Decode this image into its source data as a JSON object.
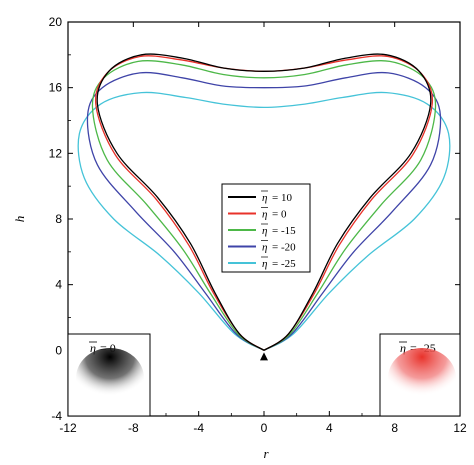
{
  "chart_data": {
    "type": "line",
    "title": "",
    "xlabel": "r",
    "ylabel": "h",
    "xlim": [
      -12,
      12
    ],
    "ylim": [
      -4,
      20
    ],
    "x_ticks": [
      -12,
      -8,
      -4,
      0,
      4,
      8,
      12
    ],
    "y_ticks": [
      -4,
      0,
      4,
      8,
      12,
      16,
      20
    ],
    "grid": false,
    "legend_position": "center",
    "series": [
      {
        "name": "10",
        "color": "#000000",
        "shape": {
          "max_r": 10.2,
          "top_h": 17.0,
          "lobe_h": 18.0,
          "lobe_r": 6.8
        },
        "points": [
          [
            0,
            0
          ],
          [
            1.5,
            1.0
          ],
          [
            3.0,
            3.5
          ],
          [
            4.5,
            6.5
          ],
          [
            6.5,
            9.3
          ],
          [
            9.0,
            12.0
          ],
          [
            10.2,
            15.0
          ],
          [
            9.5,
            17.0
          ],
          [
            7.5,
            18.0
          ],
          [
            5.0,
            17.8
          ],
          [
            2.5,
            17.2
          ],
          [
            0,
            17.0
          ],
          [
            -2.5,
            17.2
          ],
          [
            -5.0,
            17.8
          ],
          [
            -7.5,
            18.0
          ],
          [
            -9.5,
            17.0
          ],
          [
            -10.2,
            15.0
          ],
          [
            -9.0,
            12.0
          ],
          [
            -6.5,
            9.3
          ],
          [
            -4.5,
            6.5
          ],
          [
            -3.0,
            3.5
          ],
          [
            -1.5,
            1.0
          ],
          [
            0,
            0
          ]
        ]
      },
      {
        "name": "0",
        "color": "#e8322a",
        "shape": {
          "max_r": 10.3,
          "top_h": 17.0,
          "lobe_h": 17.9,
          "lobe_r": 6.9
        },
        "points": [
          [
            0,
            0
          ],
          [
            1.5,
            1.0
          ],
          [
            3.1,
            3.5
          ],
          [
            4.6,
            6.4
          ],
          [
            6.6,
            9.2
          ],
          [
            9.1,
            11.9
          ],
          [
            10.3,
            15.0
          ],
          [
            9.6,
            16.9
          ],
          [
            7.6,
            17.9
          ],
          [
            5.1,
            17.7
          ],
          [
            2.5,
            17.2
          ],
          [
            0,
            17.0
          ],
          [
            -2.5,
            17.2
          ],
          [
            -5.1,
            17.7
          ],
          [
            -7.6,
            17.9
          ],
          [
            -9.6,
            16.9
          ],
          [
            -10.3,
            15.0
          ],
          [
            -9.1,
            11.9
          ],
          [
            -6.6,
            9.2
          ],
          [
            -4.6,
            6.4
          ],
          [
            -3.1,
            3.5
          ],
          [
            -1.5,
            1.0
          ],
          [
            0,
            0
          ]
        ]
      },
      {
        "name": "-15",
        "color": "#4db848",
        "shape": {
          "max_r": 10.5,
          "top_h": 16.6,
          "lobe_h": 17.6,
          "lobe_r": 7.0
        },
        "points": [
          [
            0,
            0
          ],
          [
            1.6,
            1.0
          ],
          [
            3.3,
            3.5
          ],
          [
            5.0,
            6.2
          ],
          [
            7.2,
            8.9
          ],
          [
            9.6,
            11.6
          ],
          [
            10.5,
            14.8
          ],
          [
            9.8,
            16.6
          ],
          [
            7.7,
            17.6
          ],
          [
            5.1,
            17.4
          ],
          [
            2.5,
            16.8
          ],
          [
            0,
            16.6
          ],
          [
            -2.5,
            16.8
          ],
          [
            -5.1,
            17.4
          ],
          [
            -7.7,
            17.6
          ],
          [
            -9.8,
            16.6
          ],
          [
            -10.5,
            14.8
          ],
          [
            -9.6,
            11.6
          ],
          [
            -7.2,
            8.9
          ],
          [
            -5.0,
            6.2
          ],
          [
            -3.3,
            3.5
          ],
          [
            -1.6,
            1.0
          ],
          [
            0,
            0
          ]
        ]
      },
      {
        "name": "-20",
        "color": "#3f44a8",
        "shape": {
          "max_r": 10.8,
          "top_h": 16.0,
          "lobe_h": 16.9,
          "lobe_r": 7.2
        },
        "points": [
          [
            0,
            0
          ],
          [
            1.7,
            1.0
          ],
          [
            3.6,
            3.5
          ],
          [
            5.5,
            6.0
          ],
          [
            7.9,
            8.5
          ],
          [
            10.2,
            11.3
          ],
          [
            10.8,
            14.3
          ],
          [
            9.9,
            16.0
          ],
          [
            7.6,
            16.9
          ],
          [
            5.0,
            16.6
          ],
          [
            2.5,
            16.1
          ],
          [
            0,
            16.0
          ],
          [
            -2.5,
            16.1
          ],
          [
            -5.0,
            16.6
          ],
          [
            -7.6,
            16.9
          ],
          [
            -9.9,
            16.0
          ],
          [
            -10.8,
            14.3
          ],
          [
            -10.2,
            11.3
          ],
          [
            -7.9,
            8.5
          ],
          [
            -5.5,
            6.0
          ],
          [
            -3.6,
            3.5
          ],
          [
            -1.7,
            1.0
          ],
          [
            0,
            0
          ]
        ]
      },
      {
        "name": "-25",
        "color": "#45c3d8",
        "shape": {
          "max_r": 11.3,
          "top_h": 14.8,
          "lobe_h": 15.7,
          "lobe_r": 7.5
        },
        "points": [
          [
            0,
            0
          ],
          [
            1.8,
            1.0
          ],
          [
            4.0,
            3.5
          ],
          [
            6.4,
            5.8
          ],
          [
            9.2,
            8.0
          ],
          [
            11.0,
            10.5
          ],
          [
            11.3,
            13.2
          ],
          [
            10.0,
            15.0
          ],
          [
            7.5,
            15.7
          ],
          [
            4.8,
            15.4
          ],
          [
            2.5,
            15.0
          ],
          [
            0,
            14.8
          ],
          [
            -2.5,
            15.0
          ],
          [
            -4.8,
            15.4
          ],
          [
            -7.5,
            15.7
          ],
          [
            -10.0,
            15.0
          ],
          [
            -11.3,
            13.2
          ],
          [
            -11.0,
            10.5
          ],
          [
            -9.2,
            8.0
          ],
          [
            -6.4,
            5.8
          ],
          [
            -4.0,
            3.5
          ],
          [
            -1.8,
            1.0
          ],
          [
            0,
            0
          ]
        ]
      }
    ],
    "marker": {
      "shape": "triangle",
      "x": 0,
      "y": 0,
      "color": "#000000"
    },
    "insets": [
      {
        "label": "= 0",
        "color": "#000000"
      },
      {
        "label": "= -25",
        "color": "#e8322a"
      }
    ],
    "legend_symbol": "η"
  }
}
